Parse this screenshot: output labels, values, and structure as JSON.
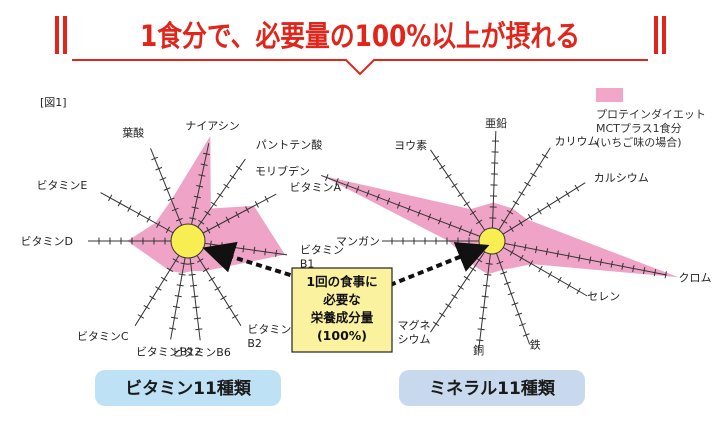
{
  "header": {
    "title": "1食分で、必要量の100%以上が摂れる"
  },
  "figure_label": "[図1]",
  "legend": {
    "lines": [
      "プロテインダイエット",
      "MCTプラス1食分",
      "(いちご味の場合)"
    ],
    "color": "#f2a6c8"
  },
  "callout": {
    "lines": [
      "1回の食事に",
      "必要な",
      "栄養成分量",
      "(100%)"
    ],
    "bg": "#fbf2a0"
  },
  "colors": {
    "accent": "#e2251b",
    "fill": "#ee9cc2",
    "circle": "#f8ee52",
    "pill_vitamin": "#bfe1f5",
    "pill_mineral": "#c8d9ee"
  },
  "chart_data": [
    {
      "type": "radar",
      "title": "ビタミン11種類",
      "categories": [
        "ナイアシン",
        "パントテン酸",
        "ビタミンA",
        "ビタミンB1",
        "ビタミンB2",
        "ビタミンB6",
        "ビタミンB12",
        "ビタミンC",
        "ビタミンD",
        "ビタミンE",
        "葉酸"
      ],
      "axis_labels": [
        "ナイアシン",
        "パントテン酸",
        "ビタミンA",
        "ビタミン\nB1",
        "ビタミン\nB2",
        "ビタミンB6",
        "ビタミンB12",
        "ビタミンC",
        "ビタミンD",
        "ビタミンE",
        "葉酸"
      ],
      "values": [
        4.6,
        1.7,
        3.2,
        4.2,
        1.5,
        1.3,
        1.4,
        1.5,
        2.6,
        1.6,
        1.9
      ],
      "reference_value": 1,
      "axis_max": 6
    },
    {
      "type": "radar",
      "title": "ミネラル11種類",
      "categories": [
        "亜鉛",
        "カリウム",
        "カルシウム",
        "クロム",
        "セレン",
        "鉄",
        "銅",
        "マグネシウム",
        "マンガン",
        "モリブデン",
        "ヨウ素"
      ],
      "axis_labels": [
        "亜鉛",
        "カリウム",
        "カルシウム",
        "クロム",
        "セレン",
        "鉄",
        "銅",
        "マグネ\nシウム",
        "マンガン",
        "モリブデン",
        "ヨウ素"
      ],
      "values": [
        1.5,
        1.5,
        1.6,
        12.5,
        1.8,
        1.2,
        1.3,
        1.2,
        1.7,
        12.0,
        1.5
      ],
      "reference_value": 1,
      "axis_max": 6
    }
  ]
}
